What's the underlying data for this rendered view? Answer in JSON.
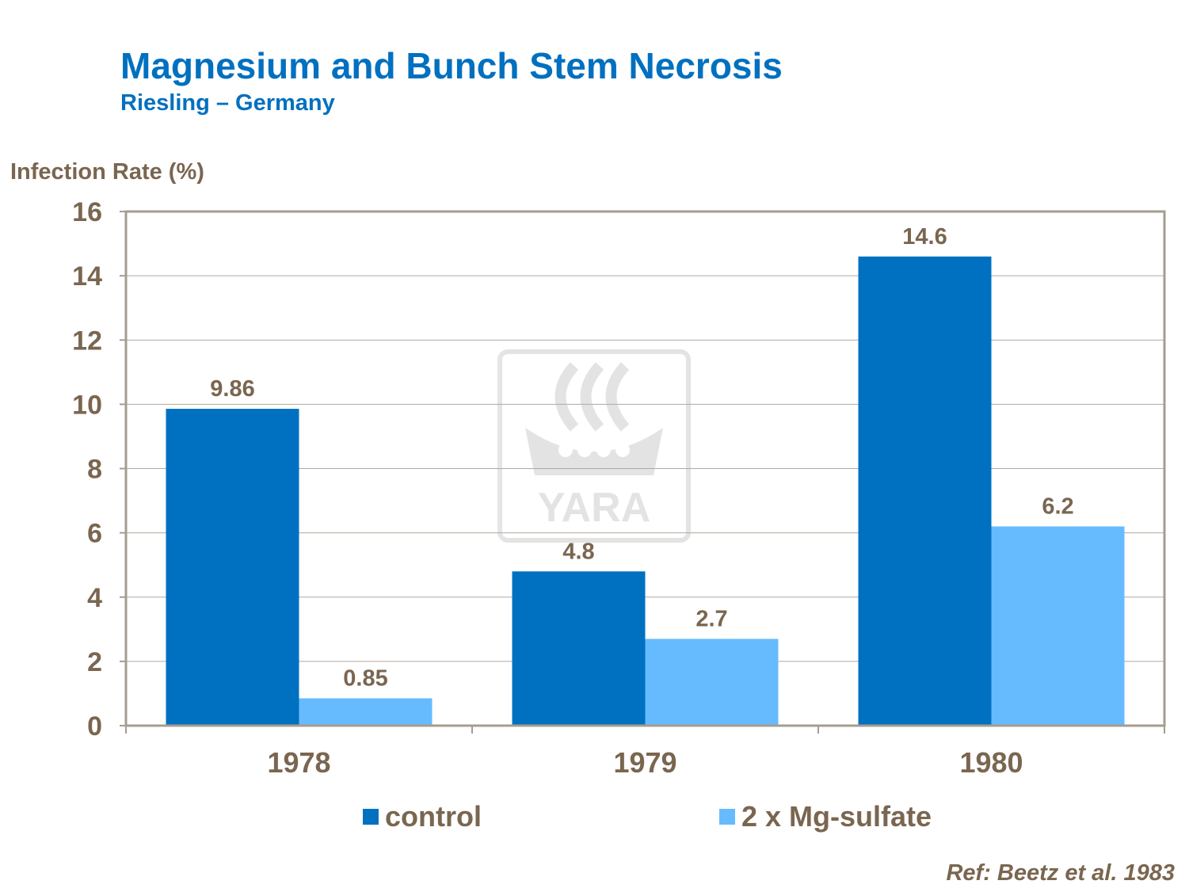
{
  "title": "Magnesium and Bunch Stem Necrosis",
  "subtitle": "Riesling – Germany",
  "reference": "Ref: Beetz et al. 1983",
  "watermark": "YARA",
  "chart_data": {
    "type": "bar",
    "title": "Magnesium and Bunch Stem Necrosis",
    "subtitle": "Riesling – Germany",
    "xlabel": "",
    "ylabel": "Infection Rate (%)",
    "categories": [
      "1978",
      "1979",
      "1980"
    ],
    "series": [
      {
        "name": "control",
        "color": "#0070C0",
        "values": [
          9.86,
          4.8,
          14.6
        ],
        "labels": [
          "9.86",
          "4.8",
          "14.6"
        ]
      },
      {
        "name": "2 x Mg-sulfate",
        "color": "#66BBFF",
        "values": [
          0.85,
          2.7,
          6.2
        ],
        "labels": [
          "0.85",
          "2.7",
          "6.2"
        ]
      }
    ],
    "ylim": [
      0,
      16
    ],
    "yticks": [
      "0",
      "2",
      "4",
      "6",
      "8",
      "10",
      "12",
      "14",
      "16"
    ],
    "grid": true,
    "legend": "bottom"
  }
}
